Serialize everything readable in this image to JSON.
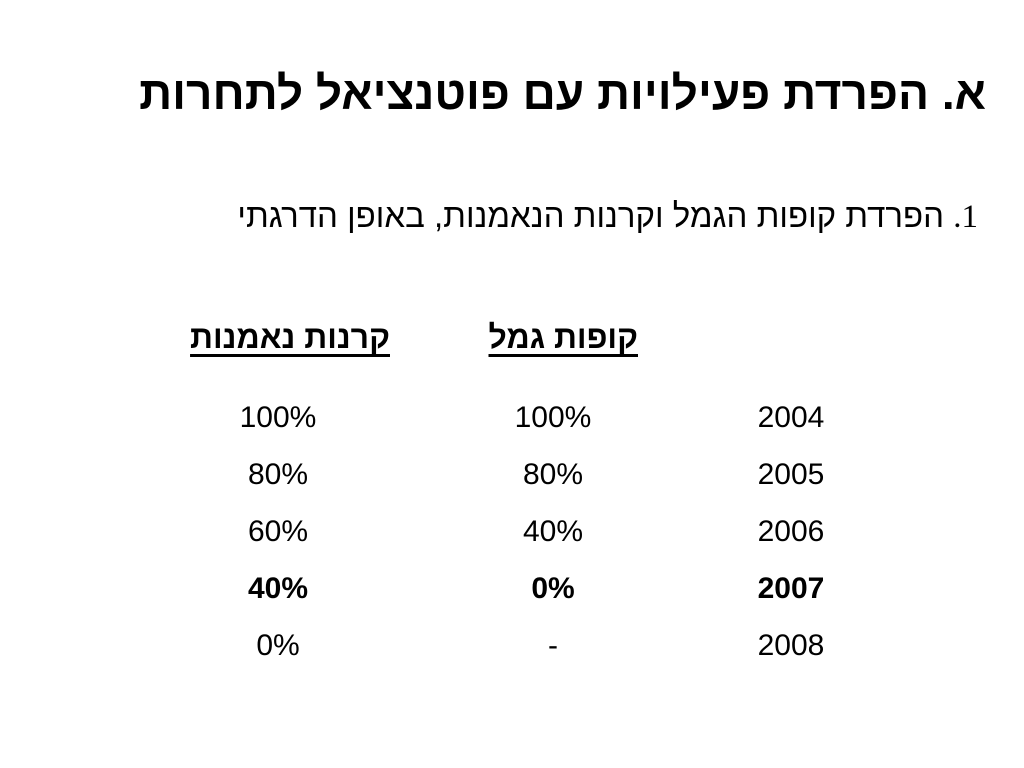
{
  "slide": {
    "title": "א. הפרדת פעילויות עם פוטנציאל לתחרות",
    "bullet": {
      "number": "1.",
      "text": "הפרדת קופות הגמל וקרנות הנאמנות, באופן הדרגתי"
    }
  },
  "table": {
    "headers": {
      "provident_funds": "קופות גמל",
      "mutual_funds": "קרנות נאמנות"
    },
    "rows": [
      {
        "year": "2004",
        "provident": "100%",
        "mutual": "100%",
        "bold": false
      },
      {
        "year": "2005",
        "provident": "80%",
        "mutual": "80%",
        "bold": false
      },
      {
        "year": "2006",
        "provident": "40%",
        "mutual": "60%",
        "bold": false
      },
      {
        "year": "2007",
        "provident": "0%",
        "mutual": "40%",
        "bold": true
      },
      {
        "year": "2008",
        "provident": "-",
        "mutual": "0%",
        "bold": false
      }
    ]
  }
}
